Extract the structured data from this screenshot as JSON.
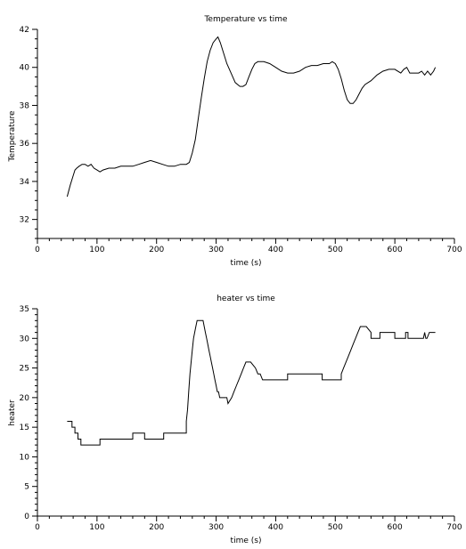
{
  "chart_data": [
    {
      "type": "line",
      "title": "Temperature vs time",
      "xlabel": "time (s)",
      "ylabel": "Temperature",
      "xlim": [
        0,
        700
      ],
      "ylim": [
        31,
        42
      ],
      "xticks": [
        0,
        100,
        200,
        300,
        400,
        500,
        600,
        700
      ],
      "yticks": [
        32,
        34,
        36,
        38,
        40,
        42
      ],
      "grid": false,
      "series": [
        {
          "x": [
            50,
            55,
            60,
            63,
            66,
            70,
            75,
            80,
            85,
            90,
            95,
            100,
            105,
            110,
            120,
            130,
            140,
            150,
            160,
            170,
            180,
            190,
            200,
            210,
            220,
            230,
            240,
            250,
            255,
            260,
            265,
            270,
            275,
            280,
            285,
            290,
            295,
            300,
            303,
            307,
            312,
            318,
            325,
            332,
            340,
            345,
            350,
            355,
            360,
            365,
            370,
            375,
            380,
            390,
            400,
            410,
            420,
            430,
            440,
            450,
            460,
            470,
            480,
            490,
            495,
            500,
            505,
            510,
            515,
            520,
            525,
            530,
            535,
            540,
            545,
            550,
            560,
            570,
            580,
            590,
            600,
            610,
            615,
            620,
            625,
            630,
            640,
            645,
            650,
            655,
            660,
            665,
            668
          ],
          "y": [
            33.2,
            33.8,
            34.3,
            34.6,
            34.7,
            34.8,
            34.9,
            34.9,
            34.8,
            34.9,
            34.7,
            34.6,
            34.5,
            34.6,
            34.7,
            34.7,
            34.8,
            34.8,
            34.8,
            34.9,
            35.0,
            35.1,
            35.0,
            34.9,
            34.8,
            34.8,
            34.9,
            34.9,
            35.0,
            35.5,
            36.2,
            37.3,
            38.4,
            39.4,
            40.3,
            40.9,
            41.3,
            41.5,
            41.6,
            41.3,
            40.8,
            40.2,
            39.7,
            39.2,
            39.0,
            39.0,
            39.1,
            39.5,
            39.9,
            40.2,
            40.3,
            40.3,
            40.3,
            40.2,
            40.0,
            39.8,
            39.7,
            39.7,
            39.8,
            40.0,
            40.1,
            40.1,
            40.2,
            40.2,
            40.3,
            40.2,
            39.9,
            39.4,
            38.8,
            38.3,
            38.1,
            38.1,
            38.3,
            38.6,
            38.9,
            39.1,
            39.3,
            39.6,
            39.8,
            39.9,
            39.9,
            39.7,
            39.9,
            40.0,
            39.7,
            39.7,
            39.7,
            39.8,
            39.6,
            39.8,
            39.6,
            39.8,
            40.0
          ]
        }
      ]
    },
    {
      "type": "line",
      "title": "heater vs time",
      "xlabel": "time (s)",
      "ylabel": "heater",
      "xlim": [
        0,
        700
      ],
      "ylim": [
        0,
        35
      ],
      "xticks": [
        0,
        100,
        200,
        300,
        400,
        500,
        600,
        700
      ],
      "yticks": [
        0,
        5,
        10,
        15,
        20,
        25,
        30,
        35
      ],
      "grid": false,
      "series": [
        {
          "x": [
            50,
            58,
            58,
            63,
            63,
            68,
            68,
            73,
            73,
            80,
            80,
            105,
            105,
            160,
            160,
            180,
            180,
            212,
            212,
            250,
            250,
            252,
            254,
            256,
            258,
            260,
            262,
            264,
            266,
            268,
            270,
            278,
            280,
            282,
            284,
            286,
            288,
            290,
            292,
            294,
            296,
            298,
            300,
            302,
            304,
            306,
            308,
            310,
            312,
            315,
            318,
            320,
            326,
            330,
            334,
            338,
            342,
            346,
            350,
            354,
            358,
            366,
            370,
            374,
            378,
            382,
            386,
            390,
            420,
            420,
            478,
            478,
            510,
            510,
            514,
            518,
            522,
            526,
            530,
            534,
            538,
            542,
            548,
            552,
            560,
            560,
            575,
            575,
            600,
            600,
            618,
            618,
            622,
            622,
            648,
            650,
            652,
            654,
            658,
            668
          ],
          "y": [
            16,
            16,
            15,
            15,
            14,
            14,
            13,
            13,
            12,
            12,
            12,
            12,
            13,
            13,
            14,
            14,
            13,
            13,
            14,
            14,
            16,
            18,
            21,
            24,
            26,
            28,
            30,
            31,
            32,
            33,
            33,
            33,
            32,
            31,
            30,
            29,
            28,
            27,
            26,
            25,
            24,
            23,
            22,
            21,
            21,
            20,
            20,
            20,
            20,
            20,
            20,
            19,
            20,
            21,
            22,
            23,
            24,
            25,
            26,
            26,
            26,
            25,
            24,
            24,
            23,
            23,
            23,
            23,
            23,
            24,
            24,
            23,
            23,
            24,
            25,
            26,
            27,
            28,
            29,
            30,
            31,
            32,
            32,
            32,
            31,
            30,
            30,
            31,
            31,
            30,
            30,
            31,
            31,
            30,
            30,
            31,
            30,
            30,
            31,
            31
          ]
        }
      ]
    }
  ]
}
